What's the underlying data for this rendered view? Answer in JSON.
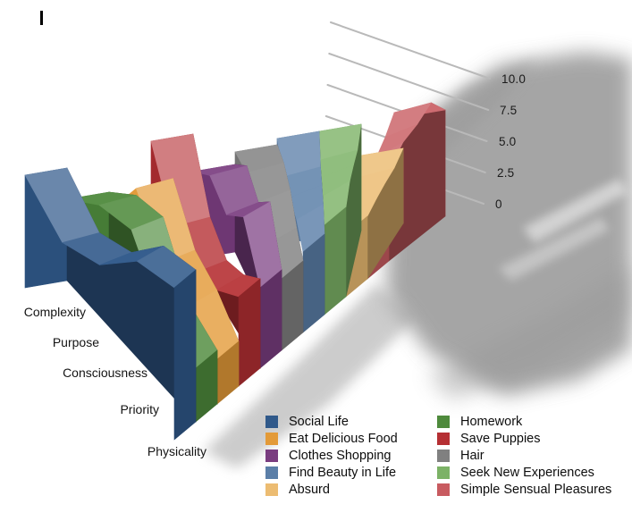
{
  "window": {
    "background": "#ffffff"
  },
  "decor": {
    "cursor_mark": "text-cursor-artifact"
  },
  "value_axis": {
    "ticks": [
      {
        "label": "10.0",
        "value": 10
      },
      {
        "label": "7.5",
        "value": 7.5
      },
      {
        "label": "5.0",
        "value": 5
      },
      {
        "label": "2.5",
        "value": 2.5
      },
      {
        "label": "0",
        "value": 0
      }
    ],
    "line_color": "#b9b9b9",
    "label_color": "#1b1b1b"
  },
  "category_axis": {
    "labels": [
      "Complexity",
      "Purpose",
      "Consciousness",
      "Priority",
      "Physicality"
    ],
    "label_color": "#141414"
  },
  "legend": {
    "col1": [
      {
        "label": "Social Life",
        "color": "#30598A"
      },
      {
        "label": "Eat Delicious Food",
        "color": "#E39A38"
      },
      {
        "label": "Clothes Shopping",
        "color": "#7A3D80"
      },
      {
        "label": "Find Beauty in Life",
        "color": "#5B7FA8"
      },
      {
        "label": "Absurd",
        "color": "#ECBC72"
      }
    ],
    "col2": [
      {
        "label": "Homework",
        "color": "#4E8A3C"
      },
      {
        "label": "Save Puppies",
        "color": "#B52F33"
      },
      {
        "label": "Hair",
        "color": "#808080"
      },
      {
        "label": "Seek New Experiences",
        "color": "#7CB266"
      },
      {
        "label": "Simple Sensual Pleasures",
        "color": "#C85B60"
      }
    ]
  },
  "chart_data": {
    "type": "area",
    "subtype": "3d-ribbon",
    "categories": [
      "Physicality",
      "Priority",
      "Consciousness",
      "Purpose",
      "Complexity"
    ],
    "categories_order": "front-to-back",
    "value_ticks": [
      0,
      2.5,
      5,
      7.5,
      10
    ],
    "ylim": [
      0,
      10
    ],
    "legend_position": "bottom-right",
    "grid": "back-wall-diagonal-lines",
    "series": [
      {
        "name": "Social Life",
        "color": "#30598A",
        "values": [
          8.5,
          8.5,
          6.5,
          6.0,
          9.0
        ]
      },
      {
        "name": "Homework",
        "color": "#4E8A3C",
        "values": [
          3.0,
          4.0,
          8.0,
          8.0,
          6.5
        ]
      },
      {
        "name": "Eat Delicious Food",
        "color": "#E39A38",
        "values": [
          2.5,
          4.0,
          5.0,
          8.5,
          5.0
        ]
      },
      {
        "name": "Save Puppies",
        "color": "#B52F33",
        "values": [
          5.0,
          4.0,
          3.5,
          5.0,
          10.0
        ]
      },
      {
        "name": "Clothes Shopping",
        "color": "#7A3D80",
        "values": [
          4.5,
          7.5,
          6.5,
          8.0,
          7.0
        ]
      },
      {
        "name": "Hair",
        "color": "#808080",
        "values": [
          4.0,
          5.0,
          6.5,
          7.5,
          8.0
        ]
      },
      {
        "name": "Find Beauty in Life",
        "color": "#5B7FA8",
        "values": [
          4.5,
          5.5,
          6.0,
          6.5,
          8.5
        ]
      },
      {
        "name": "Seek New Experiences",
        "color": "#7CB266",
        "values": [
          5.0,
          6.0,
          6.5,
          7.0,
          8.5
        ]
      },
      {
        "name": "Absurd",
        "color": "#ECBC72",
        "values": [
          3.5,
          4.0,
          4.5,
          5.0,
          6.0
        ]
      },
      {
        "name": "Simple Sensual Pleasures",
        "color": "#C85B60",
        "values": [
          5.0,
          6.5,
          7.5,
          9.0,
          8.5
        ]
      }
    ]
  }
}
